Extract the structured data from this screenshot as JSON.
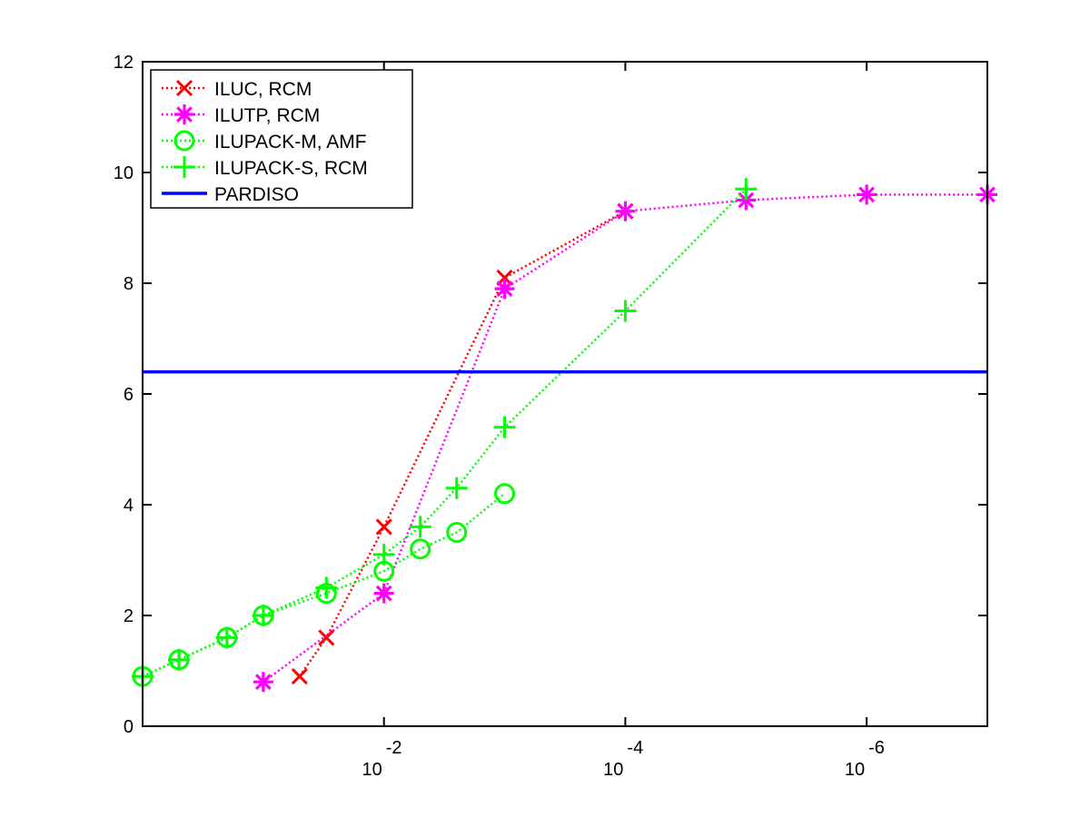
{
  "chart_data": {
    "type": "line",
    "title": "",
    "xlabel": "",
    "ylabel": "",
    "x_scale": "log",
    "x_reversed": true,
    "xlim": [
      1,
      1e-07
    ],
    "ylim": [
      0,
      12
    ],
    "y_ticks": [
      0,
      2,
      4,
      6,
      8,
      10,
      12
    ],
    "x_ticks": [
      {
        "value": 0.01,
        "base": "10",
        "exp": "-2"
      },
      {
        "value": 0.0001,
        "base": "10",
        "exp": "-4"
      },
      {
        "value": 1e-06,
        "base": "10",
        "exp": "-6"
      }
    ],
    "grid": false,
    "legend_position": "top-left",
    "series": [
      {
        "name": "ILUC, RCM",
        "color": "#ff0000",
        "marker": "x",
        "line": "dotted",
        "points": [
          [
            0.05,
            0.9
          ],
          [
            0.03,
            1.6
          ],
          [
            0.01,
            3.6
          ],
          [
            0.001,
            8.1
          ],
          [
            0.0001,
            9.3
          ]
        ]
      },
      {
        "name": "ILUTP, RCM",
        "color": "#ff00ff",
        "marker": "asterisk",
        "line": "dotted",
        "points": [
          [
            0.1,
            0.8
          ],
          [
            0.01,
            2.4
          ],
          [
            0.001,
            7.9
          ],
          [
            0.0001,
            9.3
          ],
          [
            1e-05,
            9.5
          ],
          [
            1e-06,
            9.6
          ],
          [
            1e-07,
            9.6
          ]
        ]
      },
      {
        "name": "ILUPACK-M, AMF",
        "color": "#00ff00",
        "marker": "circle",
        "line": "dotted",
        "points": [
          [
            1,
            0.9
          ],
          [
            0.5,
            1.2
          ],
          [
            0.2,
            1.6
          ],
          [
            0.1,
            2.0
          ],
          [
            0.03,
            2.4
          ],
          [
            0.01,
            2.8
          ],
          [
            0.005,
            3.2
          ],
          [
            0.0025,
            3.5
          ],
          [
            0.001,
            4.2
          ]
        ]
      },
      {
        "name": "ILUPACK-S, RCM",
        "color": "#00ff00",
        "marker": "plus",
        "line": "dotted",
        "points": [
          [
            1,
            0.9
          ],
          [
            0.5,
            1.2
          ],
          [
            0.2,
            1.6
          ],
          [
            0.1,
            2.0
          ],
          [
            0.03,
            2.5
          ],
          [
            0.01,
            3.1
          ],
          [
            0.005,
            3.6
          ],
          [
            0.0025,
            4.3
          ],
          [
            0.001,
            5.4
          ],
          [
            0.0001,
            7.5
          ],
          [
            1e-05,
            9.7
          ]
        ]
      },
      {
        "name": "PARDISO",
        "color": "#0000ff",
        "marker": "none",
        "line": "solid",
        "points": [
          [
            1,
            6.4
          ],
          [
            1e-07,
            6.4
          ]
        ]
      }
    ]
  }
}
